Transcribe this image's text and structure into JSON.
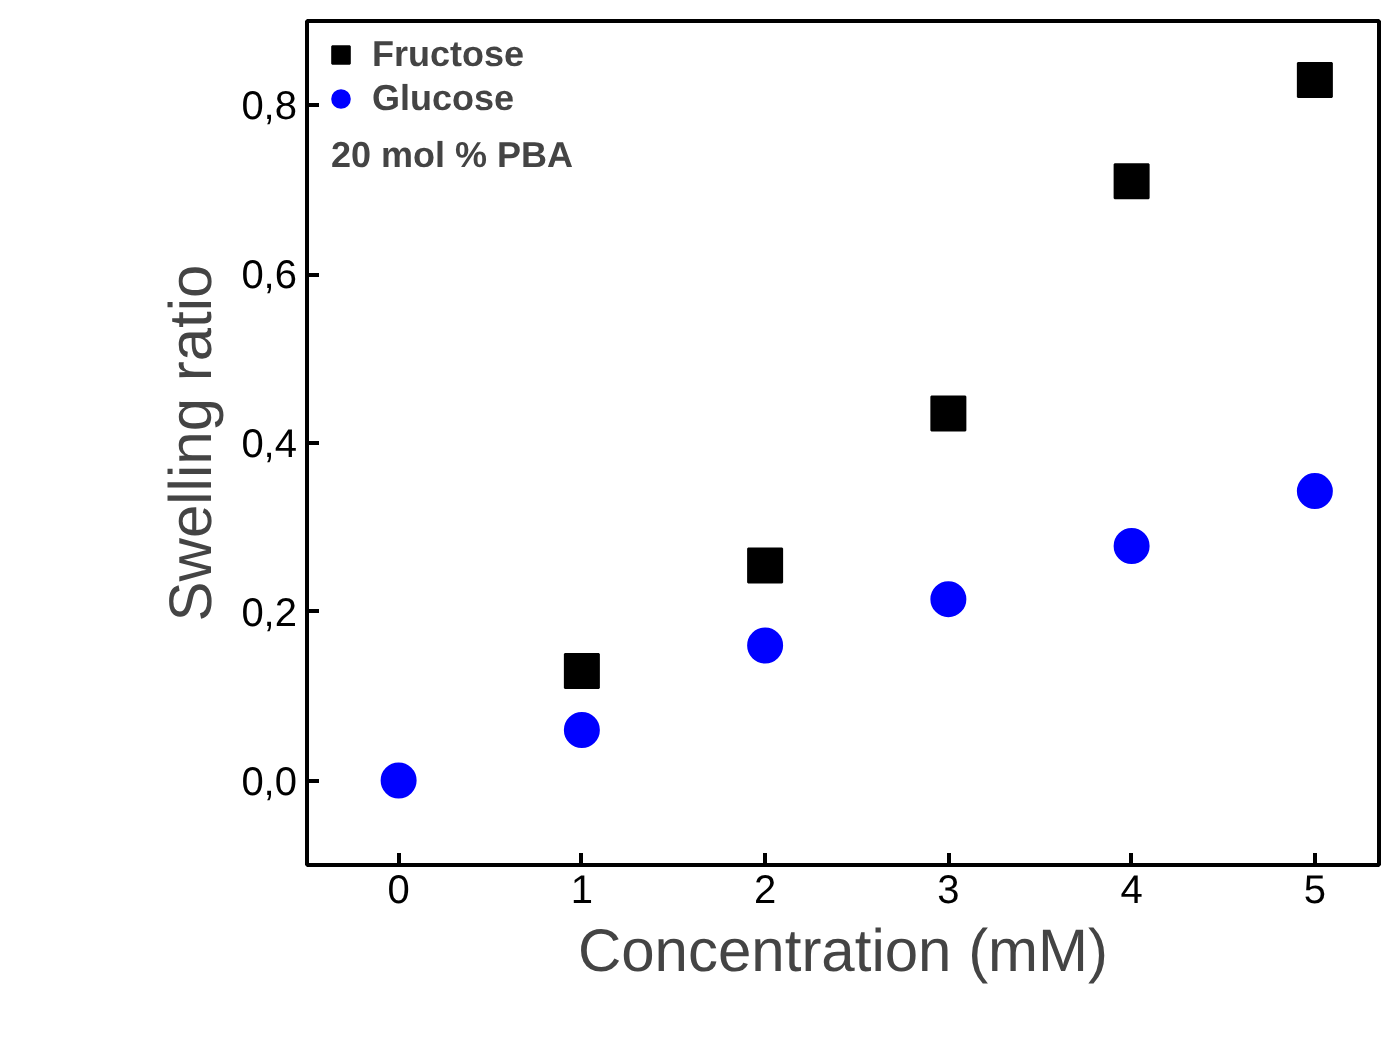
{
  "chart_data": {
    "type": "scatter",
    "xlabel": "Concentration (mM)",
    "ylabel": "Swelling ratio",
    "x": [
      0,
      1,
      2,
      3,
      4,
      5
    ],
    "series": [
      {
        "name": "Fructose",
        "color": "#000000",
        "marker": "square",
        "values": [
          null,
          0.13,
          0.255,
          0.435,
          0.71,
          0.83
        ]
      },
      {
        "name": "Glucose",
        "color": "#0000ff",
        "marker": "circle",
        "values": [
          0,
          0.06,
          0.16,
          0.215,
          0.278,
          0.343
        ]
      }
    ],
    "annotations": [
      "20 mol % PBA"
    ],
    "xlim": [
      -0.5,
      5.35
    ],
    "ylim": [
      -0.1,
      0.9
    ],
    "xticks": [
      0,
      1,
      2,
      3,
      4,
      5
    ],
    "yticks": [
      {
        "value": 0,
        "label": "0,0"
      },
      {
        "value": 0.2,
        "label": "0,2"
      },
      {
        "value": 0.4,
        "label": "0,4"
      },
      {
        "value": 0.6,
        "label": "0,6"
      },
      {
        "value": 0.8,
        "label": "0,8"
      }
    ],
    "legend": "top left",
    "grid": false
  }
}
